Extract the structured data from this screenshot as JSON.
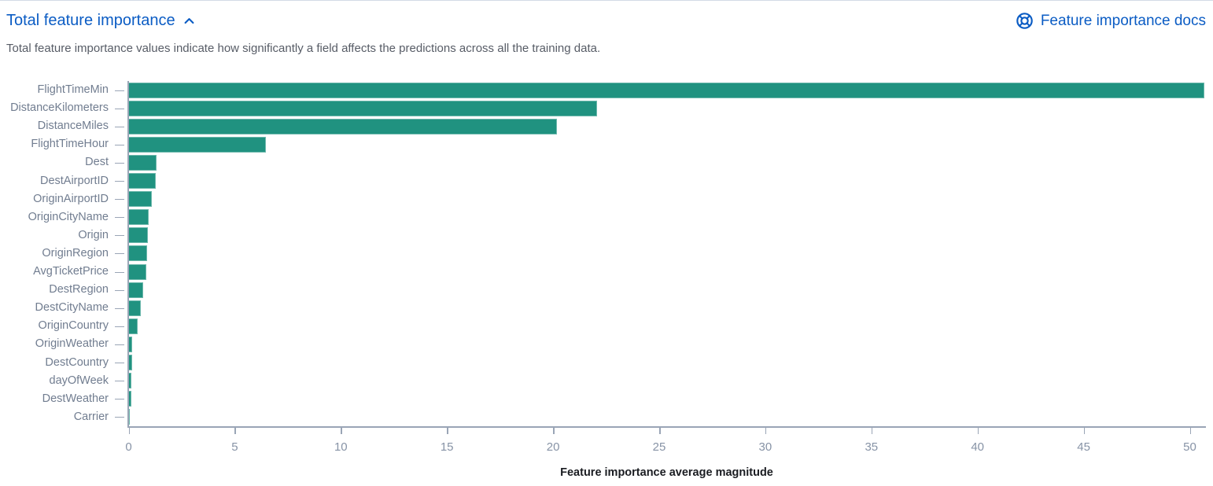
{
  "header": {
    "title": "Total feature importance",
    "docs_link_label": "Feature importance docs",
    "description": "Total feature importance values indicate how significantly a field affects the predictions across all the training data."
  },
  "colors": {
    "link_blue": "#0b5cc4",
    "bar_teal": "#209280",
    "axis_line_gray": "#9aa5b6",
    "y_label_gray": "#717d90",
    "x_tick_gray": "#8793a6",
    "description_gray": "#575c66",
    "axis_title_black": "#1a1c21"
  },
  "icons": {
    "collapse": "chevron-up-icon",
    "docs": "help-lifering-icon"
  },
  "chart_data": {
    "type": "bar",
    "orientation": "horizontal",
    "title": "",
    "xlabel": "Feature importance average magnitude",
    "ylabel": "",
    "xlim": [
      0,
      50.7
    ],
    "xticks": [
      0,
      5,
      10,
      15,
      20,
      25,
      30,
      35,
      40,
      45,
      50
    ],
    "grid": false,
    "legend": false,
    "bar_color": "#209280",
    "categories": [
      "FlightTimeMin",
      "DistanceKilometers",
      "DistanceMiles",
      "FlightTimeHour",
      "Dest",
      "DestAirportID",
      "OriginAirportID",
      "OriginCityName",
      "Origin",
      "OriginRegion",
      "AvgTicketPrice",
      "DestRegion",
      "DestCityName",
      "OriginCountry",
      "OriginWeather",
      "DestCountry",
      "dayOfWeek",
      "DestWeather",
      "Carrier"
    ],
    "values": [
      50.7,
      22.1,
      20.2,
      6.5,
      1.35,
      1.3,
      1.1,
      0.97,
      0.93,
      0.9,
      0.85,
      0.72,
      0.6,
      0.45,
      0.19,
      0.17,
      0.16,
      0.13,
      0.04
    ]
  }
}
